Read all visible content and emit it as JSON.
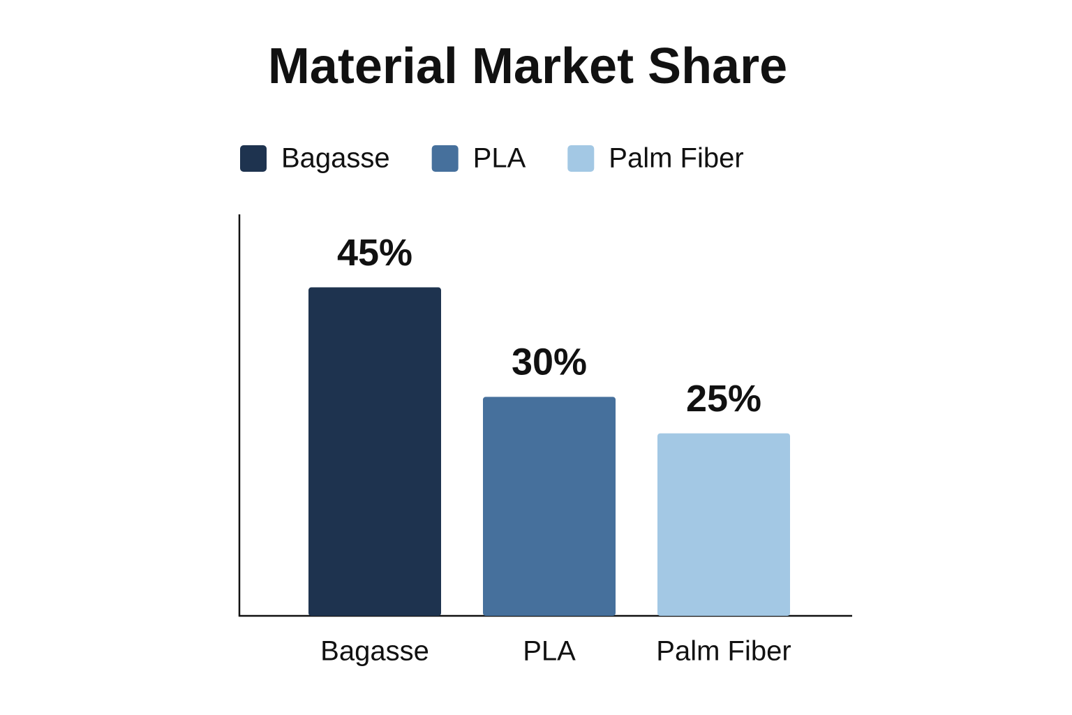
{
  "chart_data": {
    "type": "bar",
    "title": "Material Market Share",
    "categories": [
      "Bagasse",
      "PLA",
      "Palm Fiber"
    ],
    "values": [
      45,
      30,
      25
    ],
    "value_labels": [
      "45%",
      "30%",
      "25%"
    ],
    "colors": [
      "#1e334f",
      "#46709c",
      "#a3c8e4"
    ],
    "ylim": [
      0,
      55
    ],
    "legend": "top-left"
  }
}
